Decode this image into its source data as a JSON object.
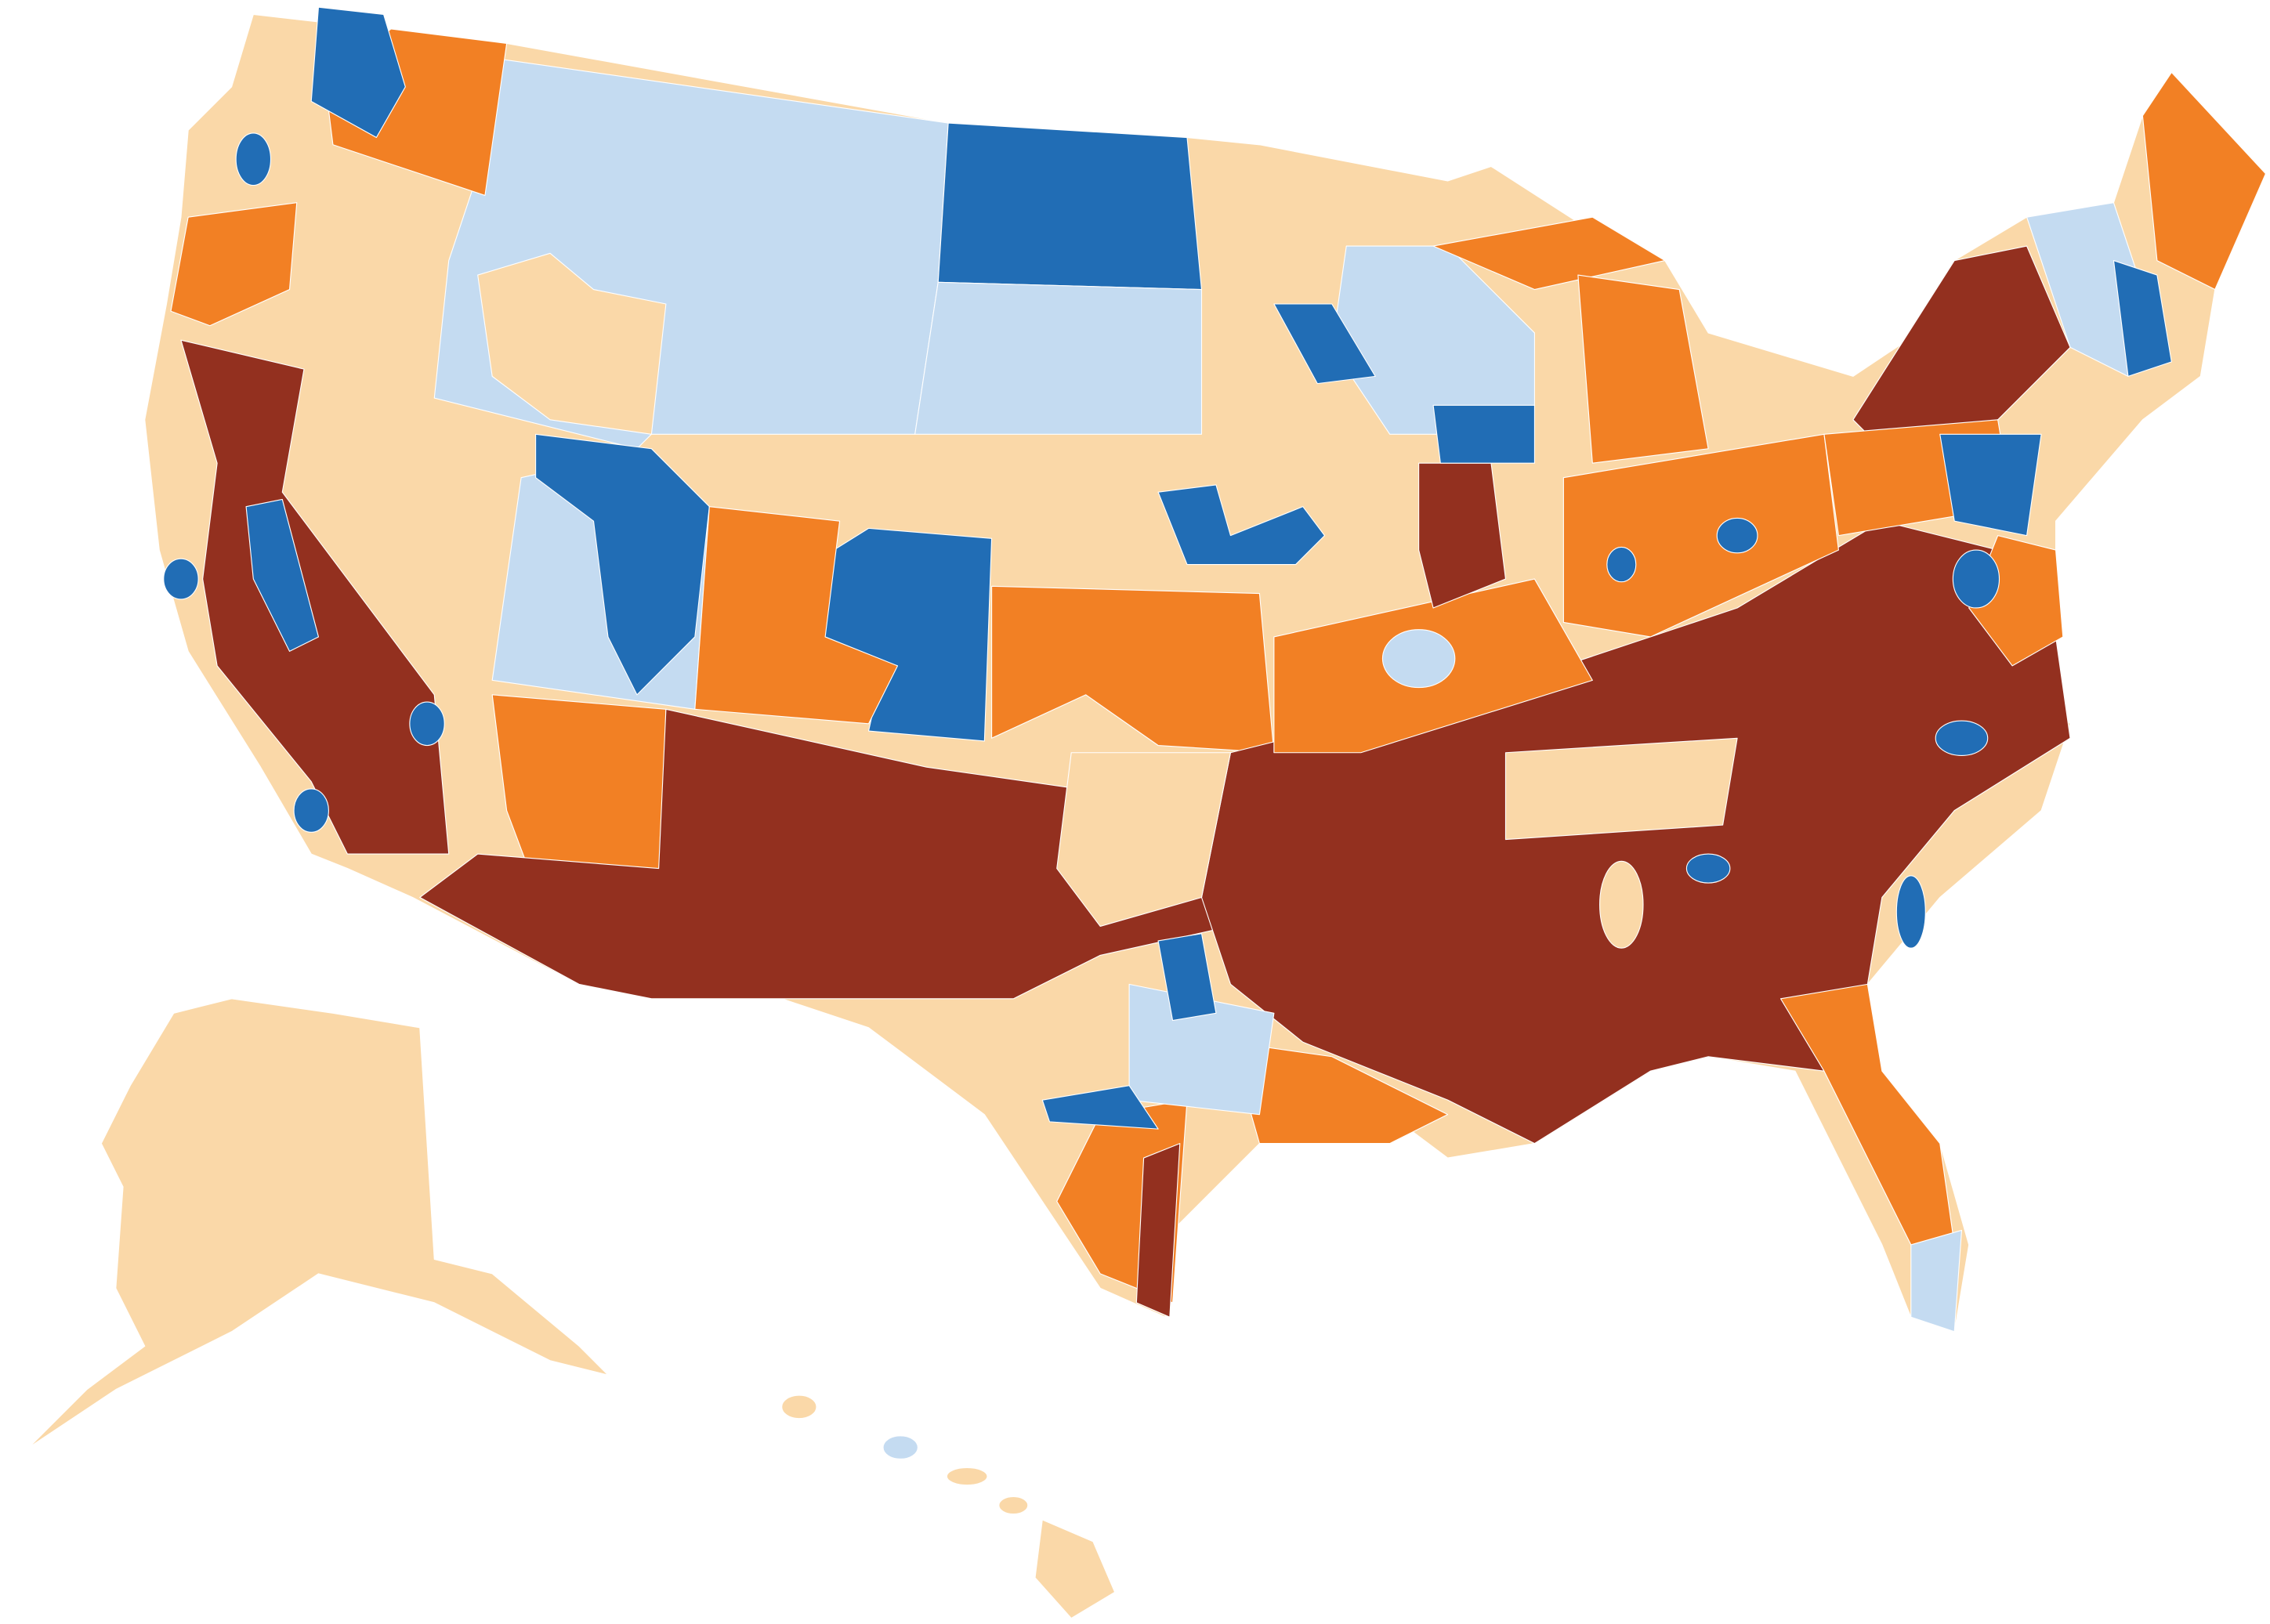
{
  "map": {
    "type": "choropleth",
    "colors": [
      "#93301f",
      "#f28024",
      "#fad8a8",
      "#c4dbf1",
      "#216db5"
    ]
  }
}
